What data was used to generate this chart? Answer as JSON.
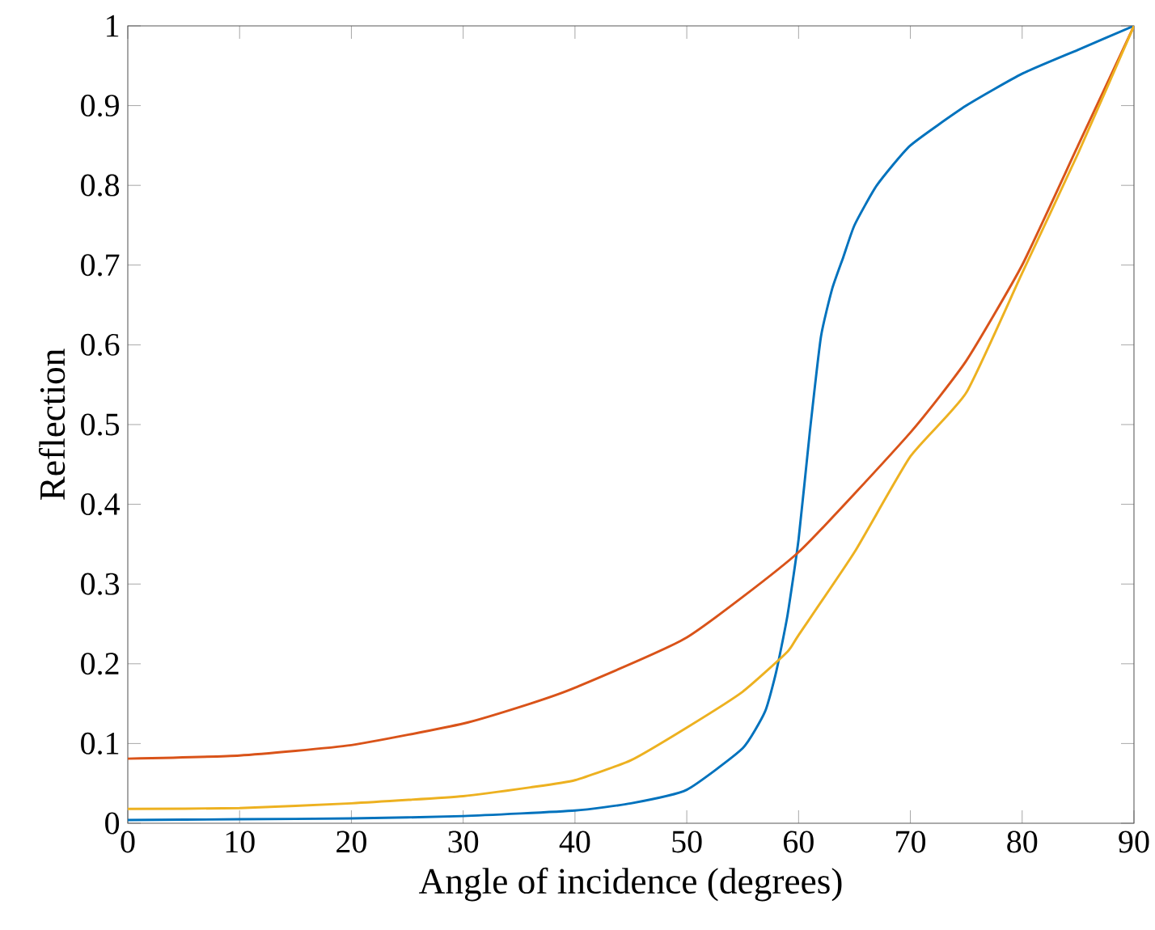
{
  "chart_data": {
    "type": "line",
    "xlabel": "Angle of incidence (degrees)",
    "ylabel": "Reflection",
    "xlim": [
      0,
      90
    ],
    "ylim": [
      0,
      1
    ],
    "xticks": [
      0,
      10,
      20,
      30,
      40,
      50,
      60,
      70,
      80,
      90
    ],
    "yticks": [
      0,
      0.1,
      0.2,
      0.3,
      0.4,
      0.5,
      0.6,
      0.7,
      0.8,
      0.9,
      1
    ],
    "marker": "none",
    "line_style": "solid",
    "series": [
      {
        "color": "#0072bd",
        "x": [
          0,
          10,
          20,
          30,
          40,
          45,
          50,
          55,
          57,
          58,
          59,
          60,
          61,
          62,
          63,
          64,
          65,
          67,
          70,
          75,
          80,
          85,
          90
        ],
        "values": [
          0.004,
          0.005,
          0.006,
          0.009,
          0.016,
          0.025,
          0.042,
          0.094,
          0.14,
          0.19,
          0.26,
          0.356,
          0.49,
          0.61,
          0.67,
          0.71,
          0.75,
          0.8,
          0.85,
          0.9,
          0.94,
          0.97,
          1
        ]
      },
      {
        "color": "#d95319",
        "x": [
          0,
          10,
          20,
          30,
          36,
          40,
          50,
          60,
          70,
          75,
          80,
          85,
          90
        ],
        "values": [
          0.081,
          0.085,
          0.098,
          0.125,
          0.15,
          0.17,
          0.233,
          0.34,
          0.49,
          0.58,
          0.7,
          0.85,
          1
        ]
      },
      {
        "color": "#edb120",
        "x": [
          0,
          10,
          20,
          30,
          36,
          40,
          45,
          50,
          55,
          59,
          60,
          65,
          70,
          75,
          80,
          85,
          90
        ],
        "values": [
          0.018,
          0.019,
          0.025,
          0.034,
          0.045,
          0.054,
          0.079,
          0.12,
          0.165,
          0.215,
          0.236,
          0.34,
          0.46,
          0.54,
          0.69,
          0.84,
          1
        ]
      }
    ]
  }
}
